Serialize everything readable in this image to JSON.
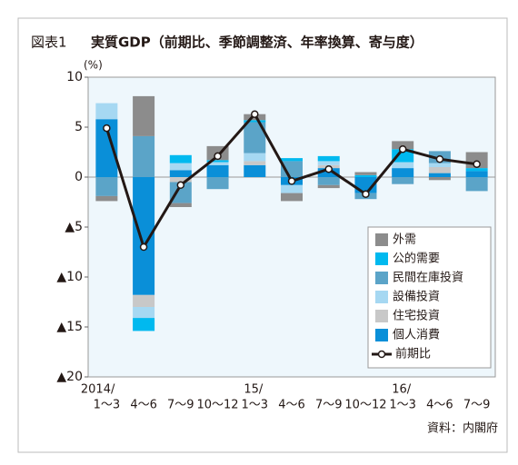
{
  "chart_data": {
    "type": "stacked-bar-line",
    "label": "図表1",
    "title": "実質GDP（前期比、季節調整済、年率換算、寄与度）",
    "y_unit": "(%)",
    "source": "資料：内閣府",
    "year_labels": [
      "2014/",
      null,
      null,
      null,
      "15/",
      null,
      null,
      null,
      "16/",
      null,
      null
    ],
    "categories": [
      "1〜3",
      "4〜6",
      "7〜9",
      "10〜12",
      "1〜3",
      "4〜6",
      "7〜9",
      "10〜12",
      "1〜3",
      "4〜6",
      "7〜9"
    ],
    "ylim": [
      -20,
      10
    ],
    "yticks": [
      10,
      5,
      0,
      {
        "value": -5,
        "label": "▲5"
      },
      {
        "value": -10,
        "label": "▲10"
      },
      {
        "value": -15,
        "label": "▲15"
      },
      {
        "value": -20,
        "label": "▲20"
      }
    ],
    "series": [
      {
        "name": "個人消費",
        "color": "#0a8fd8",
        "values": [
          5.8,
          -11.8,
          0.7,
          1.2,
          1.2,
          -0.8,
          0.9,
          -1.6,
          0.9,
          0.4,
          0.6
        ]
      },
      {
        "name": "住宅投資",
        "color": "#c8c8c8",
        "values": [
          0,
          -1.2,
          -0.5,
          0,
          0.4,
          0,
          0.3,
          0,
          0,
          0.6,
          0
        ]
      },
      {
        "name": "設備投資",
        "color": "#a6d8f2",
        "values": [
          1.6,
          -1.1,
          0.7,
          0.3,
          0.8,
          -0.8,
          0.4,
          0,
          0.6,
          0.4,
          0
        ]
      },
      {
        "name": "民間在庫投資",
        "color": "#5ba4c8",
        "values": [
          -1.9,
          4.1,
          -2.1,
          -1.2,
          3.1,
          1.6,
          -0.8,
          -0.6,
          -0.7,
          1.2,
          -1.4
        ]
      },
      {
        "name": "公的需要",
        "color": "#00b9ef",
        "values": [
          0,
          -1.3,
          0.8,
          0.2,
          0.2,
          0.3,
          0.5,
          0.2,
          1.3,
          0,
          0.3
        ]
      },
      {
        "name": "外需",
        "color": "#8c8c8c",
        "values": [
          -0.5,
          4.0,
          -0.4,
          1.4,
          0.6,
          -0.8,
          -0.3,
          0.3,
          0.8,
          -0.3,
          1.6
        ]
      }
    ],
    "line": {
      "name": "前期比",
      "color": "#231815",
      "values": [
        4.9,
        -7.0,
        -0.8,
        2.1,
        6.3,
        -0.4,
        0.8,
        -1.7,
        2.8,
        1.8,
        1.3
      ]
    }
  }
}
